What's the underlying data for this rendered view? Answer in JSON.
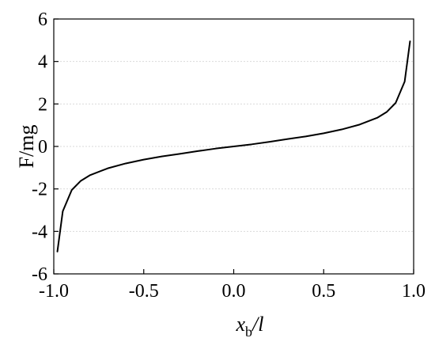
{
  "chart_data": {
    "type": "line",
    "title": "",
    "xlabel_main": "x",
    "xlabel_sub": "b",
    "xlabel_tail": "/l",
    "ylabel": "F/mg",
    "xlim": [
      -1.0,
      1.0
    ],
    "ylim": [
      -6,
      6
    ],
    "grid": "horizontal dashed",
    "x_ticks": [
      "-1.0",
      "-0.5",
      "0.0",
      "0.5",
      "1.0"
    ],
    "x_tick_values": [
      -1.0,
      -0.5,
      0.0,
      0.5,
      1.0
    ],
    "y_ticks": [
      "-6",
      "-4",
      "-2",
      "0",
      "2",
      "4",
      "6"
    ],
    "y_tick_values": [
      -6,
      -4,
      -2,
      0,
      2,
      4,
      6
    ],
    "series": [
      {
        "x": [
          -0.98,
          -0.95,
          -0.9,
          -0.85,
          -0.8,
          -0.7,
          -0.6,
          -0.5,
          -0.4,
          -0.3,
          -0.2,
          -0.1,
          0.0,
          0.1,
          0.2,
          0.3,
          0.4,
          0.5,
          0.6,
          0.7,
          0.8,
          0.85,
          0.9,
          0.95,
          0.98
        ],
        "y": [
          -4.95,
          -3.05,
          -2.05,
          -1.62,
          -1.36,
          -1.03,
          -0.8,
          -0.62,
          -0.47,
          -0.35,
          -0.22,
          -0.1,
          0.0,
          0.1,
          0.22,
          0.35,
          0.47,
          0.62,
          0.8,
          1.03,
          1.36,
          1.62,
          2.05,
          3.05,
          4.95
        ]
      }
    ]
  }
}
